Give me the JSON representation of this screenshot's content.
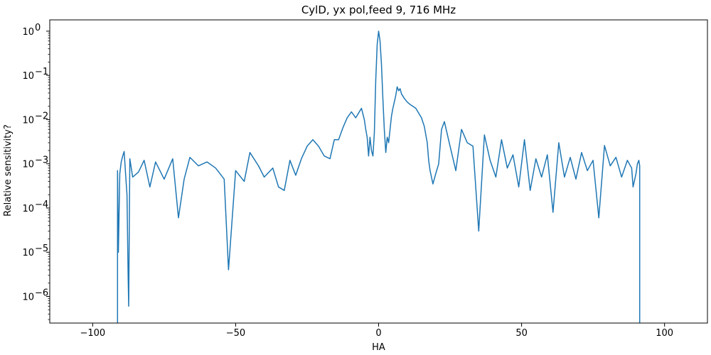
{
  "chart_data": {
    "type": "line",
    "title": "CylD, yx pol,feed 9, 716 MHz",
    "xlabel": "HA",
    "ylabel": "Relative sensitivity?",
    "xlim": [
      -115,
      115
    ],
    "ylim": [
      2.5e-07,
      1.8
    ],
    "yscale": "log",
    "grid": false,
    "legend": "none",
    "x_ticks": [
      -100,
      -50,
      0,
      50,
      100
    ],
    "x_tick_labels": [
      "−100",
      "−50",
      "0",
      "50",
      "100"
    ],
    "y_ticks": [
      1e-06,
      1e-05,
      0.0001,
      0.001,
      0.01,
      0.1,
      1
    ],
    "y_tick_labels": [
      {
        "base": "10",
        "exp": "−6"
      },
      {
        "base": "10",
        "exp": "−5"
      },
      {
        "base": "10",
        "exp": "−4"
      },
      {
        "base": "10",
        "exp": "−3"
      },
      {
        "base": "10",
        "exp": "−2"
      },
      {
        "base": "10",
        "exp": "−1"
      },
      {
        "base": "10",
        "exp": "0"
      }
    ],
    "series": [
      {
        "color": "#1f77b4",
        "x": [
          -91.3,
          -91.0,
          -90.5,
          -90.0,
          -89.5,
          -89.0,
          -88.5,
          -88.0,
          -87.6,
          -87.4,
          -87.0,
          -86.0,
          -84.0,
          -82.0,
          -80.0,
          -78.0,
          -75.0,
          -72.0,
          -70.0,
          -68.0,
          -66.0,
          -63.0,
          -60.0,
          -57.0,
          -54.0,
          -52.5,
          -50.0,
          -47.0,
          -45.0,
          -42.0,
          -40.0,
          -37.0,
          -35.0,
          -33.0,
          -31.0,
          -29.0,
          -27.0,
          -25.0,
          -23.0,
          -21.0,
          -19.0,
          -17.0,
          -15.5,
          -14.0,
          -12.5,
          -11.0,
          -9.5,
          -8.0,
          -7.0,
          -6.0,
          -5.0,
          -4.5,
          -4.0,
          -3.5,
          -3.0,
          -2.5,
          -2.0,
          -1.5,
          -1.0,
          -0.5,
          0.0,
          0.5,
          1.0,
          1.5,
          2.0,
          2.5,
          3.0,
          3.5,
          4.0,
          4.5,
          5.0,
          5.5,
          6.0,
          6.5,
          7.0,
          7.5,
          8.0,
          9.0,
          10.0,
          11.0,
          12.0,
          13.0,
          14.0,
          15.0,
          16.0,
          17.0,
          17.5,
          18.0,
          19.0,
          20.0,
          21.0,
          22.0,
          23.0,
          25.0,
          27.0,
          29.0,
          31.0,
          33.0,
          35.0,
          37.0,
          39.0,
          41.0,
          43.0,
          45.0,
          47.0,
          49.0,
          51.0,
          53.0,
          55.0,
          57.0,
          59.0,
          61.0,
          63.0,
          65.0,
          67.0,
          69.0,
          71.0,
          73.0,
          75.0,
          77.0,
          79.0,
          81.0,
          83.0,
          85.0,
          87.0,
          88.5,
          89.0,
          90.0,
          90.5,
          91.0,
          91.3
        ],
        "y": [
          0.0007,
          1e-05,
          0.0006,
          0.0011,
          0.0015,
          0.0019,
          0.0006,
          0.0002,
          3e-06,
          6e-07,
          0.0013,
          0.0005,
          0.00065,
          0.0012,
          0.0003,
          0.0011,
          0.00045,
          0.0013,
          6e-05,
          0.00045,
          0.0014,
          0.0009,
          0.0011,
          0.0008,
          0.00045,
          4e-06,
          0.0007,
          0.0004,
          0.0018,
          0.0009,
          0.0005,
          0.0008,
          0.0003,
          0.00025,
          0.0012,
          0.00055,
          0.0013,
          0.0025,
          0.0035,
          0.0025,
          0.0015,
          0.0013,
          0.0035,
          0.0035,
          0.0065,
          0.011,
          0.015,
          0.011,
          0.014,
          0.018,
          0.01,
          0.006,
          0.004,
          0.0015,
          0.004,
          0.002,
          0.0015,
          0.005,
          0.08,
          0.5,
          1.0,
          0.6,
          0.18,
          0.03,
          0.006,
          0.0018,
          0.004,
          0.003,
          0.006,
          0.012,
          0.018,
          0.025,
          0.035,
          0.055,
          0.045,
          0.05,
          0.038,
          0.03,
          0.025,
          0.022,
          0.02,
          0.018,
          0.014,
          0.011,
          0.007,
          0.003,
          0.0012,
          0.0007,
          0.00035,
          0.0006,
          0.001,
          0.006,
          0.009,
          0.0025,
          0.0007,
          0.006,
          0.003,
          0.0025,
          3e-05,
          0.0045,
          0.0012,
          0.0005,
          0.0035,
          0.0008,
          0.0016,
          0.0003,
          0.0035,
          0.00025,
          0.0013,
          0.0005,
          0.0016,
          8e-05,
          0.003,
          0.0005,
          0.0014,
          0.00045,
          0.0018,
          0.0007,
          0.0012,
          6e-05,
          0.0026,
          0.0009,
          0.0014,
          0.0005,
          0.0012,
          0.0008,
          0.0003,
          0.0006,
          0.001,
          0.0012,
          0.0009
        ]
      }
    ]
  }
}
